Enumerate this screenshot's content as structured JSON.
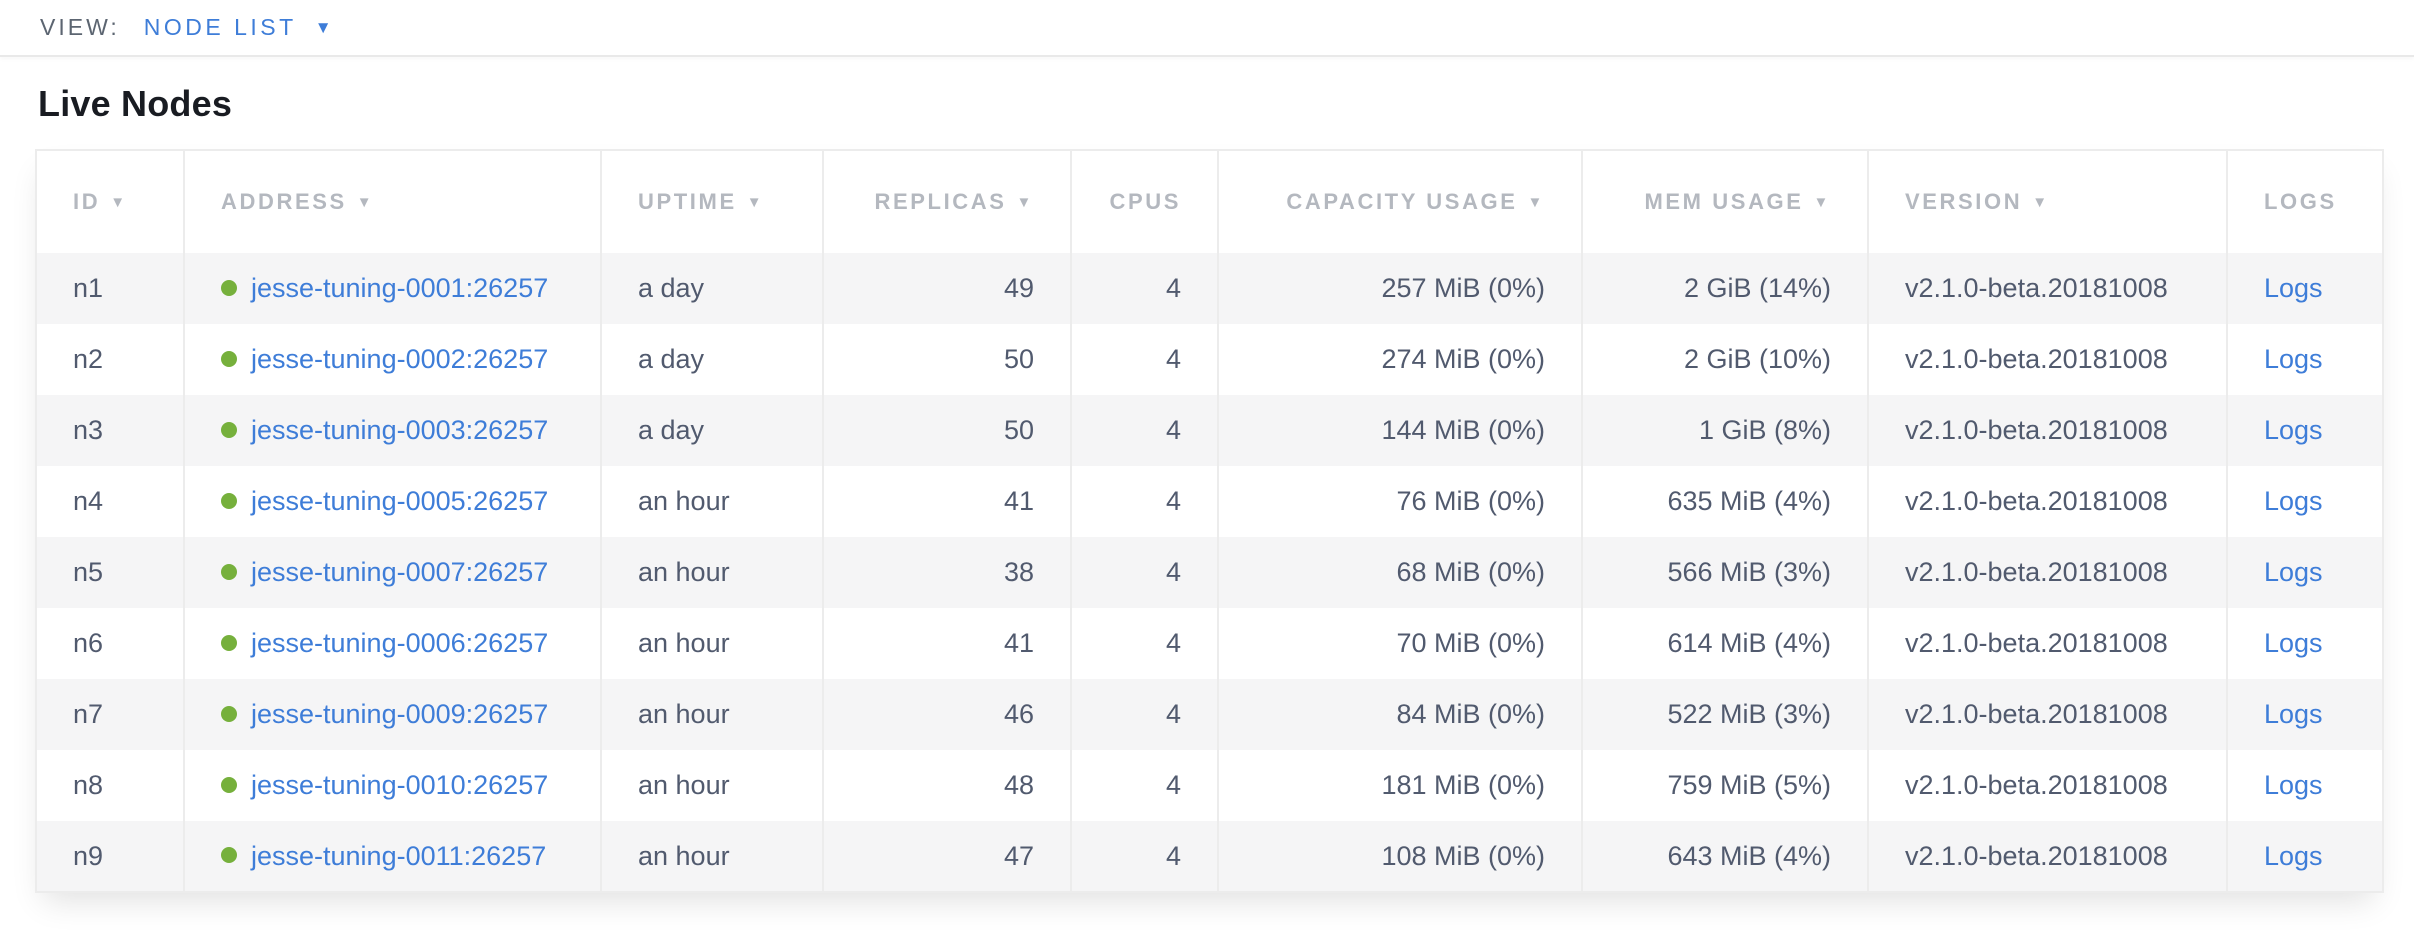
{
  "toolbar": {
    "view_label": "VIEW:",
    "view_value": "NODE LIST",
    "caret_icon": "▼"
  },
  "page": {
    "title": "Live Nodes"
  },
  "colors": {
    "accent_blue": "#3e7dd8",
    "status_live_green": "#76b03c",
    "header_text_gray": "#b4b8bf",
    "body_text_slate": "#515a6e",
    "row_stripe": "#f5f5f6",
    "table_border": "#ececec"
  },
  "table": {
    "columns": [
      {
        "key": "id",
        "label": "ID",
        "sortable": true,
        "align": "left"
      },
      {
        "key": "address",
        "label": "ADDRESS",
        "sortable": true,
        "align": "left"
      },
      {
        "key": "uptime",
        "label": "UPTIME",
        "sortable": true,
        "align": "left"
      },
      {
        "key": "replicas",
        "label": "REPLICAS",
        "sortable": true,
        "align": "right"
      },
      {
        "key": "cpus",
        "label": "CPUS",
        "sortable": false,
        "align": "right"
      },
      {
        "key": "capacity",
        "label": "CAPACITY USAGE",
        "sortable": true,
        "align": "right"
      },
      {
        "key": "mem",
        "label": "MEM USAGE",
        "sortable": true,
        "align": "right"
      },
      {
        "key": "version",
        "label": "VERSION",
        "sortable": true,
        "align": "left"
      },
      {
        "key": "logs",
        "label": "LOGS",
        "sortable": false,
        "align": "left"
      }
    ],
    "sort_icon": "▼",
    "rows": [
      {
        "id": "n1",
        "status": "live",
        "address": "jesse-tuning-0001:26257",
        "uptime": "a day",
        "replicas": "49",
        "cpus": "4",
        "capacity": "257 MiB (0%)",
        "mem": "2 GiB (14%)",
        "version": "v2.1.0-beta.20181008",
        "logs": "Logs"
      },
      {
        "id": "n2",
        "status": "live",
        "address": "jesse-tuning-0002:26257",
        "uptime": "a day",
        "replicas": "50",
        "cpus": "4",
        "capacity": "274 MiB (0%)",
        "mem": "2 GiB (10%)",
        "version": "v2.1.0-beta.20181008",
        "logs": "Logs"
      },
      {
        "id": "n3",
        "status": "live",
        "address": "jesse-tuning-0003:26257",
        "uptime": "a day",
        "replicas": "50",
        "cpus": "4",
        "capacity": "144 MiB (0%)",
        "mem": "1 GiB (8%)",
        "version": "v2.1.0-beta.20181008",
        "logs": "Logs"
      },
      {
        "id": "n4",
        "status": "live",
        "address": "jesse-tuning-0005:26257",
        "uptime": "an hour",
        "replicas": "41",
        "cpus": "4",
        "capacity": "76 MiB (0%)",
        "mem": "635 MiB (4%)",
        "version": "v2.1.0-beta.20181008",
        "logs": "Logs"
      },
      {
        "id": "n5",
        "status": "live",
        "address": "jesse-tuning-0007:26257",
        "uptime": "an hour",
        "replicas": "38",
        "cpus": "4",
        "capacity": "68 MiB (0%)",
        "mem": "566 MiB (3%)",
        "version": "v2.1.0-beta.20181008",
        "logs": "Logs"
      },
      {
        "id": "n6",
        "status": "live",
        "address": "jesse-tuning-0006:26257",
        "uptime": "an hour",
        "replicas": "41",
        "cpus": "4",
        "capacity": "70 MiB (0%)",
        "mem": "614 MiB (4%)",
        "version": "v2.1.0-beta.20181008",
        "logs": "Logs"
      },
      {
        "id": "n7",
        "status": "live",
        "address": "jesse-tuning-0009:26257",
        "uptime": "an hour",
        "replicas": "46",
        "cpus": "4",
        "capacity": "84 MiB (0%)",
        "mem": "522 MiB (3%)",
        "version": "v2.1.0-beta.20181008",
        "logs": "Logs"
      },
      {
        "id": "n8",
        "status": "live",
        "address": "jesse-tuning-0010:26257",
        "uptime": "an hour",
        "replicas": "48",
        "cpus": "4",
        "capacity": "181 MiB (0%)",
        "mem": "759 MiB (5%)",
        "version": "v2.1.0-beta.20181008",
        "logs": "Logs"
      },
      {
        "id": "n9",
        "status": "live",
        "address": "jesse-tuning-0011:26257",
        "uptime": "an hour",
        "replicas": "47",
        "cpus": "4",
        "capacity": "108 MiB (0%)",
        "mem": "643 MiB (4%)",
        "version": "v2.1.0-beta.20181008",
        "logs": "Logs"
      }
    ]
  }
}
